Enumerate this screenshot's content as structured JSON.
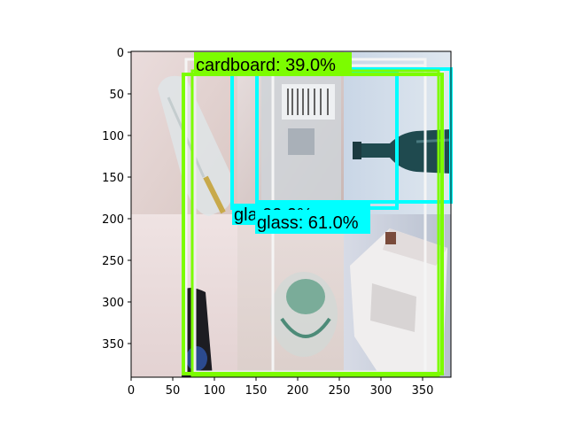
{
  "axes": {
    "x_ticks": [
      "0",
      "50",
      "100",
      "150",
      "200",
      "250",
      "300",
      "350"
    ],
    "y_ticks": [
      "0",
      "50",
      "100",
      "150",
      "200",
      "250",
      "300",
      "350"
    ],
    "x_range": [
      0,
      384
    ],
    "y_range": [
      0,
      392
    ]
  },
  "colors": {
    "cardboard": "#7cfc00",
    "glass": "#00ffff",
    "white_box": "#f5f5f5"
  },
  "detections": [
    {
      "label": "cardboard: 39.0%",
      "class": "cardboard",
      "score": 39.0
    },
    {
      "label": "glass: 61.0%",
      "class": "glass",
      "score": 61.0
    },
    {
      "label": "gla   99.9%",
      "class": "glass",
      "score": 99.9
    }
  ]
}
